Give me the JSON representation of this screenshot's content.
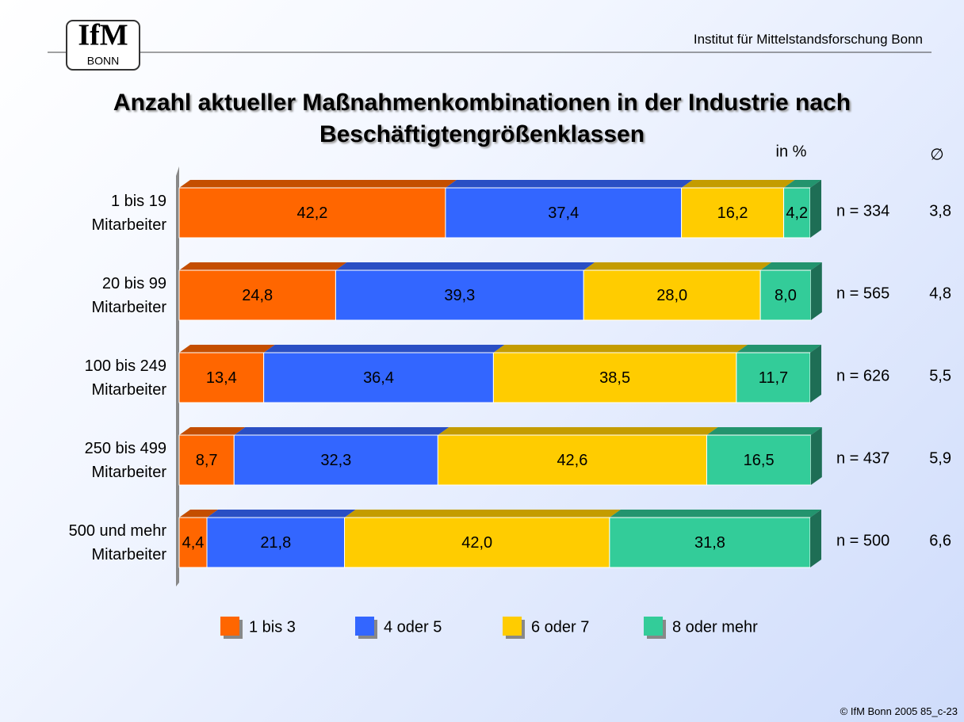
{
  "header": {
    "logo_top": "IfM",
    "logo_bottom": "BONN",
    "institute": "Institut für Mittelstandsforschung Bonn"
  },
  "chart_data": {
    "type": "stacked_bar_horizontal",
    "title": "Anzahl aktueller Maßnahmenkombinationen in der Industrie nach\nBeschäftigtengrößenklassen",
    "unit_label": "in %",
    "average_header": "∅",
    "categories": [
      "1 bis 19\nMitarbeiter",
      "20 bis 99\nMitarbeiter",
      "100 bis 249\nMitarbeiter",
      "250 bis 499\nMitarbeiter",
      "500 und mehr\nMitarbeiter"
    ],
    "xlim": [
      0,
      100
    ],
    "series": [
      {
        "name": "1 bis 3",
        "color": "#ff6600",
        "top_color": "#c44e00",
        "values": [
          42.2,
          24.8,
          13.4,
          8.7,
          4.4
        ],
        "value_labels": [
          "42,2",
          "24,8",
          "13,4",
          "8,7",
          "4,4"
        ]
      },
      {
        "name": "4 oder 5",
        "color": "#3366ff",
        "top_color": "#2a4fc4",
        "values": [
          37.4,
          39.3,
          36.4,
          32.3,
          21.8
        ],
        "value_labels": [
          "37,4",
          "39,3",
          "36,4",
          "32,3",
          "21,8"
        ]
      },
      {
        "name": "6 oder 7",
        "color": "#ffcc00",
        "top_color": "#c49c00",
        "values": [
          16.2,
          28.0,
          38.5,
          42.6,
          42.0
        ],
        "value_labels": [
          "16,2",
          "28,0",
          "38,5",
          "42,6",
          "42,0"
        ]
      },
      {
        "name": "8 oder mehr",
        "color": "#33cc99",
        "top_color": "#23946e",
        "values": [
          4.2,
          8.0,
          11.7,
          16.5,
          31.8
        ],
        "value_labels": [
          "4,2",
          "8,0",
          "11,7",
          "16,5",
          "31,8"
        ]
      }
    ],
    "n_labels": [
      "n = 334",
      "n = 565",
      "n = 626",
      "n = 437",
      "n = 500"
    ],
    "averages": [
      3.8,
      4.8,
      5.5,
      5.9,
      6.6
    ],
    "average_labels": [
      "3,8",
      "4,8",
      "5,5",
      "5,9",
      "6,6"
    ]
  },
  "footer": "© IfM Bonn 2005  85_c-23"
}
